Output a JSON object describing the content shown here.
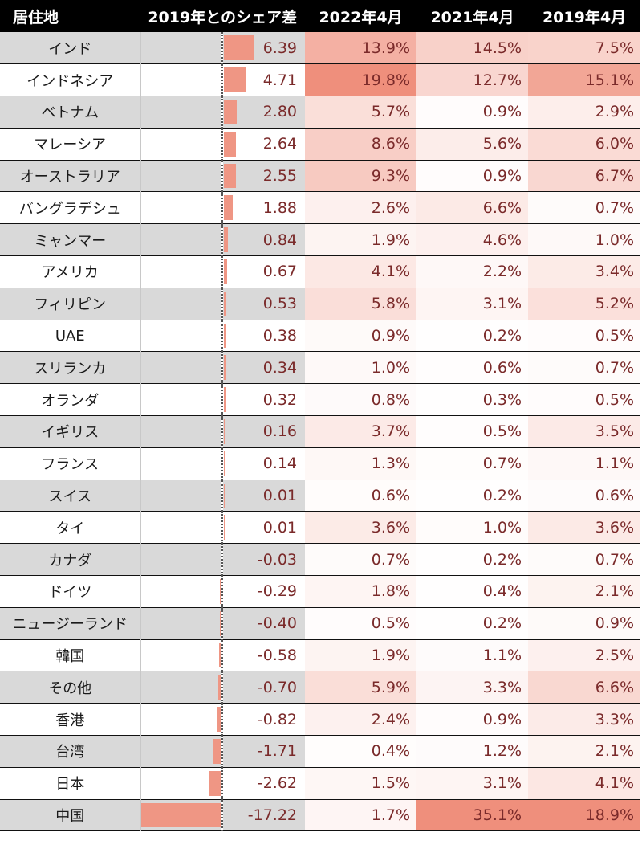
{
  "headers": {
    "country": "居住地",
    "diff": "2019年とのシェア差",
    "y2022": "2022年4月",
    "y2021": "2021年4月",
    "y2019": "2019年4月"
  },
  "colors": {
    "header_bg": "#000000",
    "shade_row": "#d9d9d9",
    "bar": "#ef9684",
    "heat_high": "#ef8f7c",
    "heat_low": "#ffffff"
  },
  "rows": [
    {
      "country": "インド",
      "diff": "6.39",
      "diff_value": 6.39,
      "y2022": "13.9%",
      "y2021": "14.5%",
      "y2019": "7.5%"
    },
    {
      "country": "インドネシア",
      "diff": "4.71",
      "diff_value": 4.71,
      "y2022": "19.8%",
      "y2021": "12.7%",
      "y2019": "15.1%"
    },
    {
      "country": "ベトナム",
      "diff": "2.80",
      "diff_value": 2.8,
      "y2022": "5.7%",
      "y2021": "0.9%",
      "y2019": "2.9%"
    },
    {
      "country": "マレーシア",
      "diff": "2.64",
      "diff_value": 2.64,
      "y2022": "8.6%",
      "y2021": "5.6%",
      "y2019": "6.0%"
    },
    {
      "country": "オーストラリア",
      "diff": "2.55",
      "diff_value": 2.55,
      "y2022": "9.3%",
      "y2021": "0.9%",
      "y2019": "6.7%"
    },
    {
      "country": "バングラデシュ",
      "diff": "1.88",
      "diff_value": 1.88,
      "y2022": "2.6%",
      "y2021": "6.6%",
      "y2019": "0.7%"
    },
    {
      "country": "ミャンマー",
      "diff": "0.84",
      "diff_value": 0.84,
      "y2022": "1.9%",
      "y2021": "4.6%",
      "y2019": "1.0%"
    },
    {
      "country": "アメリカ",
      "diff": "0.67",
      "diff_value": 0.67,
      "y2022": "4.1%",
      "y2021": "2.2%",
      "y2019": "3.4%"
    },
    {
      "country": "フィリピン",
      "diff": "0.53",
      "diff_value": 0.53,
      "y2022": "5.8%",
      "y2021": "3.1%",
      "y2019": "5.2%"
    },
    {
      "country": "UAE",
      "diff": "0.38",
      "diff_value": 0.38,
      "y2022": "0.9%",
      "y2021": "0.2%",
      "y2019": "0.5%"
    },
    {
      "country": "スリランカ",
      "diff": "0.34",
      "diff_value": 0.34,
      "y2022": "1.0%",
      "y2021": "0.6%",
      "y2019": "0.7%"
    },
    {
      "country": "オランダ",
      "diff": "0.32",
      "diff_value": 0.32,
      "y2022": "0.8%",
      "y2021": "0.3%",
      "y2019": "0.5%"
    },
    {
      "country": "イギリス",
      "diff": "0.16",
      "diff_value": 0.16,
      "y2022": "3.7%",
      "y2021": "0.5%",
      "y2019": "3.5%"
    },
    {
      "country": "フランス",
      "diff": "0.14",
      "diff_value": 0.14,
      "y2022": "1.3%",
      "y2021": "0.7%",
      "y2019": "1.1%"
    },
    {
      "country": "スイス",
      "diff": "0.01",
      "diff_value": 0.01,
      "y2022": "0.6%",
      "y2021": "0.2%",
      "y2019": "0.6%"
    },
    {
      "country": "タイ",
      "diff": "0.01",
      "diff_value": 0.01,
      "y2022": "3.6%",
      "y2021": "1.0%",
      "y2019": "3.6%"
    },
    {
      "country": "カナダ",
      "diff": "-0.03",
      "diff_value": -0.03,
      "y2022": "0.7%",
      "y2021": "0.2%",
      "y2019": "0.7%"
    },
    {
      "country": "ドイツ",
      "diff": "-0.29",
      "diff_value": -0.29,
      "y2022": "1.8%",
      "y2021": "0.4%",
      "y2019": "2.1%"
    },
    {
      "country": "ニュージーランド",
      "diff": "-0.40",
      "diff_value": -0.4,
      "y2022": "0.5%",
      "y2021": "0.2%",
      "y2019": "0.9%"
    },
    {
      "country": "韓国",
      "diff": "-0.58",
      "diff_value": -0.58,
      "y2022": "1.9%",
      "y2021": "1.1%",
      "y2019": "2.5%"
    },
    {
      "country": "その他",
      "diff": "-0.70",
      "diff_value": -0.7,
      "y2022": "5.9%",
      "y2021": "3.3%",
      "y2019": "6.6%"
    },
    {
      "country": "香港",
      "diff": "-0.82",
      "diff_value": -0.82,
      "y2022": "2.4%",
      "y2021": "0.9%",
      "y2019": "3.3%"
    },
    {
      "country": "台湾",
      "diff": "-1.71",
      "diff_value": -1.71,
      "y2022": "0.4%",
      "y2021": "1.2%",
      "y2019": "2.1%"
    },
    {
      "country": "日本",
      "diff": "-2.62",
      "diff_value": -2.62,
      "y2022": "1.5%",
      "y2021": "3.1%",
      "y2019": "4.1%"
    },
    {
      "country": "中国",
      "diff": "-17.22",
      "diff_value": -17.22,
      "y2022": "1.7%",
      "y2021": "35.1%",
      "y2019": "18.9%"
    }
  ]
}
